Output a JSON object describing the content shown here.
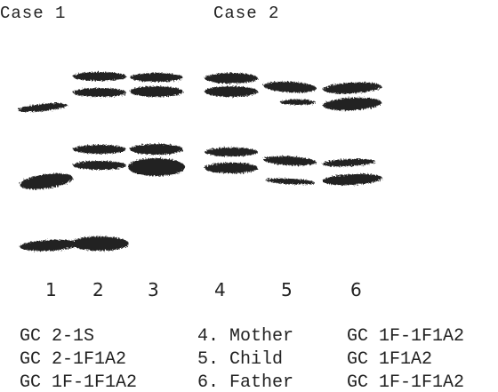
{
  "header": {
    "case1": "Case 1",
    "case2": "Case 2"
  },
  "lanes": [
    "1",
    "2",
    "3",
    "4",
    "5",
    "6"
  ],
  "legend": {
    "rows": [
      [
        "GC 2-1S",
        "4. Mother",
        "GC 1F-1F1A2"
      ],
      [
        "GC 2-1F1A2",
        "5. Child",
        "GC 1F1A2"
      ],
      [
        "GC 1F-1F1A2",
        "6. Father",
        "GC 1F-1F1A2"
      ]
    ]
  }
}
